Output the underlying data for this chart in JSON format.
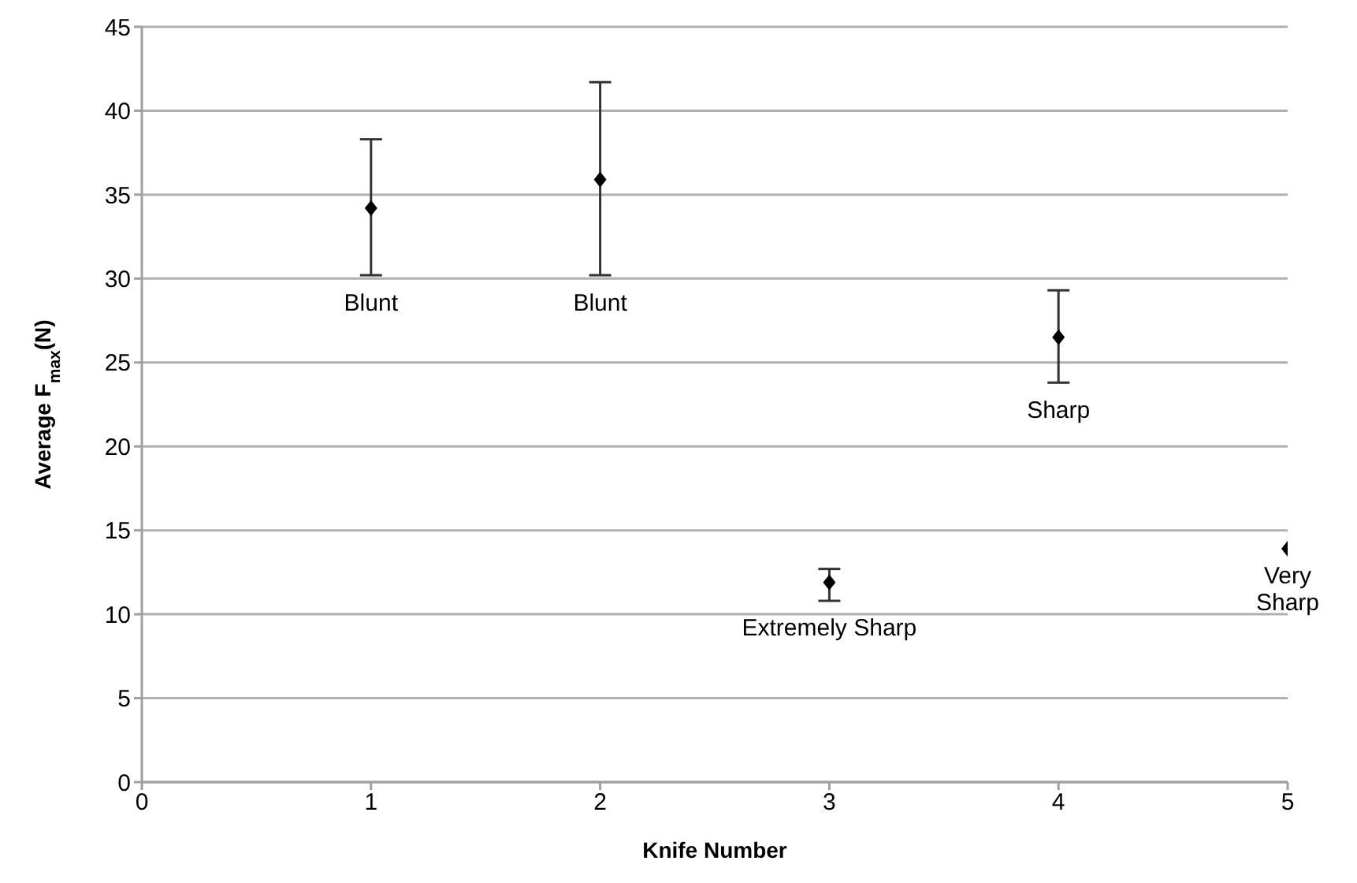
{
  "chart_data": {
    "type": "scatter",
    "xlabel": "Knife Number",
    "ylabel": "Average F$_{max}$(N)",
    "x": [
      1,
      2,
      3,
      4,
      5
    ],
    "series": [
      {
        "color": "#000000",
        "values": [
          34.2,
          35.9,
          11.9,
          26.5,
          13.9
        ],
        "errors": [
          [
            30.2,
            38.3
          ],
          [
            30.2,
            41.7
          ],
          [
            10.8,
            12.7
          ],
          [
            23.8,
            29.3
          ],
          null
        ]
      }
    ],
    "xlim": [
      0,
      5
    ],
    "xticks": [
      0,
      1,
      2,
      3,
      4,
      5
    ],
    "ylim": [
      0,
      45
    ],
    "yticks": [
      0,
      5,
      10,
      15,
      20,
      25,
      30,
      35,
      40,
      45
    ],
    "grid": "y",
    "marker": "diamond",
    "legend": false,
    "annotations": [
      "Blunt",
      "Blunt",
      "Extremely Sharp",
      "Sharp",
      "Very\nSharp"
    ]
  }
}
